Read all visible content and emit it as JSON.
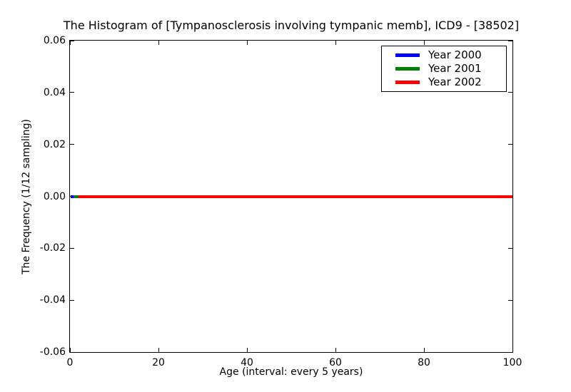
{
  "chart_data": {
    "type": "line",
    "title": "The Histogram of [Tympanosclerosis involving tympanic memb], ICD9 - [38502]",
    "xlabel": "Age (interval: every 5 years)",
    "ylabel": "The Frequency (1/12 sampling)",
    "xlim": [
      0,
      100
    ],
    "ylim": [
      -0.06,
      0.06
    ],
    "grid": false,
    "xticks": {
      "values": [
        0,
        20,
        40,
        60,
        80,
        100
      ],
      "labels": [
        "0",
        "20",
        "40",
        "60",
        "80",
        "100"
      ]
    },
    "yticks": {
      "values": [
        0.06,
        0.04,
        0.02,
        0.0,
        -0.02,
        -0.04,
        -0.06
      ],
      "labels": [
        "0.06",
        "0.04",
        "0.02",
        "0.00",
        "-0.02",
        "-0.04",
        "-0.06"
      ]
    },
    "legend": {
      "position": "upper right",
      "entries": [
        {
          "label": "Year 2000",
          "color": "#0000ff"
        },
        {
          "label": "Year 2001",
          "color": "#008000"
        },
        {
          "label": "Year 2002",
          "color": "#ff0000"
        }
      ]
    },
    "series": [
      {
        "name": "Year 2000",
        "color": "#0000ff",
        "x_range": [
          0,
          100
        ],
        "y_constant": 0
      },
      {
        "name": "Year 2001",
        "color": "#008000",
        "x_range": [
          0,
          100
        ],
        "y_constant": 0
      },
      {
        "name": "Year 2002",
        "color": "#ff0000",
        "x_range": [
          0,
          100
        ],
        "y_constant": 0
      }
    ],
    "visible_zero_segments": [
      {
        "color": "#0000ff",
        "x0": 0.15,
        "x1": 0.85,
        "y": 0
      },
      {
        "color": "#008000",
        "x0": 0.85,
        "x1": 1.8,
        "y": 0
      },
      {
        "color": "#ff0000",
        "x0": 1.8,
        "x1": 100,
        "y": 0
      }
    ],
    "colors": {
      "spine": "#000000",
      "background": "#ffffff",
      "text": "#000000"
    }
  }
}
